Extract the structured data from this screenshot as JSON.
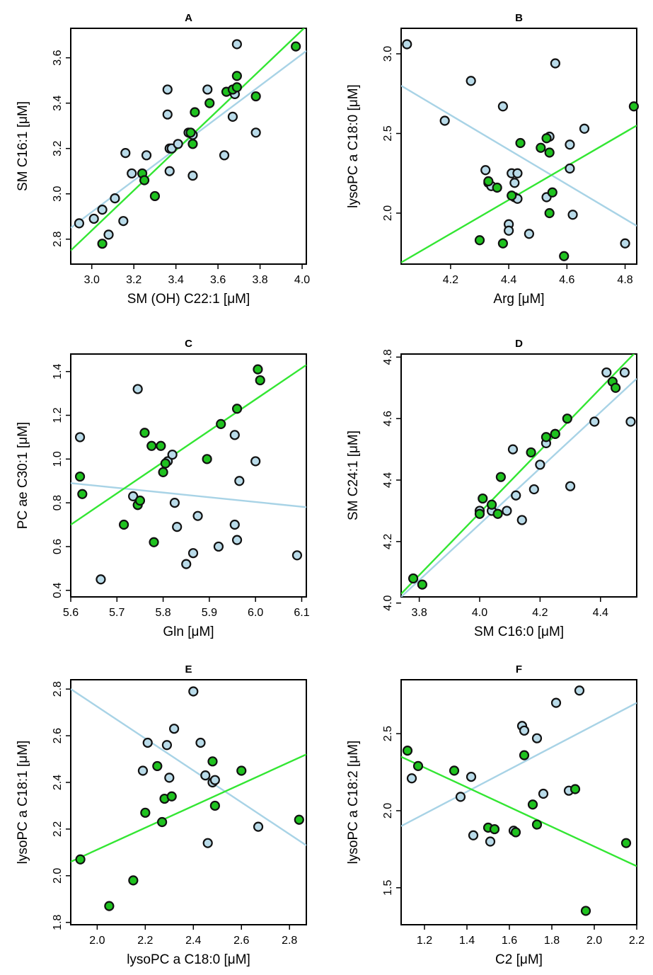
{
  "colors": {
    "blue_series": "#b9dbe9",
    "green_series": "#1fc21f",
    "blue_line": "#a8d3e6",
    "green_line": "#33e633",
    "marker_edge": "#111111"
  },
  "chart_data": [
    {
      "type": "scatter",
      "title": "A",
      "xlabel": "SM (OH) C22:1 [μM]",
      "ylabel": "SM C16:1 [μM]",
      "xlim": [
        2.9,
        4.02
      ],
      "ylim": [
        2.69,
        3.73
      ],
      "xticks": [
        3.0,
        3.2,
        3.4,
        3.6,
        3.8,
        4.0
      ],
      "yticks": [
        2.8,
        3.0,
        3.2,
        3.4,
        3.6
      ],
      "xtick_labels": [
        "3.0",
        "3.2",
        "3.4",
        "3.6",
        "3.8",
        "4.0"
      ],
      "ytick_labels": [
        "2.8",
        "3.0",
        "3.2",
        "3.4",
        "3.6"
      ],
      "series": [
        {
          "color": "blue",
          "x": [
            2.94,
            3.01,
            3.05,
            3.08,
            3.11,
            3.15,
            3.16,
            3.19,
            3.26,
            3.36,
            3.36,
            3.37,
            3.37,
            3.38,
            3.41,
            3.46,
            3.48,
            3.48,
            3.55,
            3.63,
            3.67,
            3.68,
            3.69,
            3.78
          ],
          "y": [
            2.87,
            2.89,
            2.93,
            2.82,
            2.98,
            2.88,
            3.18,
            3.09,
            3.17,
            3.35,
            3.46,
            3.1,
            3.2,
            3.2,
            3.22,
            3.27,
            3.26,
            3.08,
            3.46,
            3.17,
            3.34,
            3.44,
            3.66,
            3.27
          ]
        },
        {
          "color": "green",
          "x": [
            3.05,
            3.24,
            3.25,
            3.3,
            3.47,
            3.48,
            3.49,
            3.56,
            3.64,
            3.67,
            3.69,
            3.69,
            3.78,
            3.97
          ],
          "y": [
            2.78,
            3.09,
            3.06,
            2.99,
            3.27,
            3.22,
            3.36,
            3.4,
            3.45,
            3.46,
            3.47,
            3.52,
            3.43,
            3.65
          ]
        }
      ],
      "fit_lines": [
        {
          "color": "blue",
          "x": [
            2.9,
            4.02
          ],
          "y": [
            2.85,
            3.63
          ]
        },
        {
          "color": "green",
          "x": [
            2.9,
            4.02
          ],
          "y": [
            2.75,
            3.74
          ]
        }
      ]
    },
    {
      "type": "scatter",
      "title": "B",
      "xlabel": "Arg [μM]",
      "ylabel": "lysoPC a C18:0 [μM]",
      "xlim": [
        4.03,
        4.84
      ],
      "ylim": [
        1.68,
        3.16
      ],
      "xticks": [
        4.2,
        4.4,
        4.6,
        4.8
      ],
      "yticks": [
        2.0,
        2.5,
        3.0
      ],
      "xtick_labels": [
        "4.2",
        "4.4",
        "4.6",
        "4.8"
      ],
      "ytick_labels": [
        "2.0",
        "2.5",
        "3.0"
      ],
      "series": [
        {
          "color": "blue",
          "x": [
            4.05,
            4.18,
            4.27,
            4.32,
            4.33,
            4.34,
            4.38,
            4.4,
            4.4,
            4.41,
            4.42,
            4.42,
            4.43,
            4.43,
            4.47,
            4.53,
            4.54,
            4.56,
            4.61,
            4.61,
            4.62,
            4.66,
            4.8
          ],
          "y": [
            3.06,
            2.58,
            2.83,
            2.27,
            2.19,
            2.17,
            2.67,
            1.93,
            1.89,
            2.25,
            2.19,
            2.1,
            2.25,
            2.09,
            1.87,
            2.1,
            2.48,
            2.94,
            2.43,
            2.28,
            1.99,
            2.53,
            1.81
          ]
        },
        {
          "color": "green",
          "x": [
            4.3,
            4.33,
            4.36,
            4.38,
            4.41,
            4.44,
            4.51,
            4.53,
            4.54,
            4.54,
            4.55,
            4.59,
            4.83
          ],
          "y": [
            1.83,
            2.2,
            2.16,
            1.81,
            2.11,
            2.44,
            2.41,
            2.47,
            2.38,
            2.0,
            2.13,
            1.73,
            2.67
          ]
        }
      ],
      "fit_lines": [
        {
          "color": "blue",
          "x": [
            4.03,
            4.84
          ],
          "y": [
            2.8,
            1.92
          ]
        },
        {
          "color": "green",
          "x": [
            4.03,
            4.84
          ],
          "y": [
            1.69,
            2.55
          ]
        }
      ]
    },
    {
      "type": "scatter",
      "title": "C",
      "xlabel": "Gln [μM]",
      "ylabel": "PC ae C30:1 [μM]",
      "xlim": [
        5.6,
        6.11
      ],
      "ylim": [
        0.37,
        1.48
      ],
      "xticks": [
        5.6,
        5.7,
        5.8,
        5.9,
        6.0,
        6.1
      ],
      "yticks": [
        0.4,
        0.6,
        0.8,
        1.0,
        1.2,
        1.4
      ],
      "xtick_labels": [
        "5.6",
        "5.7",
        "5.8",
        "5.9",
        "6.0",
        "6.1"
      ],
      "ytick_labels": [
        "0.4",
        "0.6",
        "0.8",
        "1.0",
        "1.2",
        "1.4"
      ],
      "series": [
        {
          "color": "blue",
          "x": [
            5.62,
            5.665,
            5.735,
            5.745,
            5.81,
            5.82,
            5.825,
            5.83,
            5.85,
            5.865,
            5.875,
            5.92,
            5.955,
            5.955,
            5.96,
            5.965,
            6.0,
            6.09
          ],
          "y": [
            1.1,
            0.45,
            0.83,
            1.32,
            0.99,
            1.02,
            0.8,
            0.69,
            0.52,
            0.57,
            0.74,
            0.6,
            1.11,
            0.7,
            0.63,
            0.9,
            0.99,
            0.56
          ]
        },
        {
          "color": "green",
          "x": [
            5.62,
            5.625,
            5.715,
            5.745,
            5.75,
            5.76,
            5.775,
            5.78,
            5.795,
            5.8,
            5.805,
            5.895,
            5.925,
            5.96,
            6.005,
            6.01
          ],
          "y": [
            0.92,
            0.84,
            0.7,
            0.79,
            0.81,
            1.12,
            1.06,
            0.62,
            1.06,
            0.94,
            0.98,
            1.0,
            1.16,
            1.23,
            1.41,
            1.36
          ]
        }
      ],
      "fit_lines": [
        {
          "color": "blue",
          "x": [
            5.6,
            6.11
          ],
          "y": [
            0.89,
            0.78
          ]
        },
        {
          "color": "green",
          "x": [
            5.6,
            6.11
          ],
          "y": [
            0.7,
            1.43
          ]
        }
      ]
    },
    {
      "type": "scatter",
      "title": "D",
      "xlabel": "SM C16:0 [μM]",
      "ylabel": "SM C24:1 [μM]",
      "xlim": [
        3.74,
        4.52
      ],
      "ylim": [
        4.02,
        4.81
      ],
      "xticks": [
        3.8,
        4.0,
        4.2,
        4.4
      ],
      "yticks": [
        4.0,
        4.2,
        4.4,
        4.6,
        4.8
      ],
      "xtick_labels": [
        "3.8",
        "4.0",
        "4.2",
        "4.4"
      ],
      "ytick_labels": [
        "4.0",
        "4.2",
        "4.4",
        "4.6",
        "4.8"
      ],
      "series": [
        {
          "color": "blue",
          "x": [
            4.0,
            4.04,
            4.09,
            4.11,
            4.12,
            4.14,
            4.18,
            4.2,
            4.22,
            4.25,
            4.3,
            4.38,
            4.42,
            4.48,
            4.5
          ],
          "y": [
            4.3,
            4.3,
            4.3,
            4.5,
            4.35,
            4.27,
            4.37,
            4.45,
            4.52,
            4.55,
            4.38,
            4.59,
            4.75,
            4.75,
            4.59
          ]
        },
        {
          "color": "green",
          "x": [
            3.78,
            3.81,
            4.0,
            4.01,
            4.04,
            4.06,
            4.07,
            4.17,
            4.22,
            4.25,
            4.29,
            4.44,
            4.45
          ],
          "y": [
            4.08,
            4.06,
            4.29,
            4.34,
            4.32,
            4.29,
            4.41,
            4.49,
            4.54,
            4.55,
            4.6,
            4.72,
            4.7
          ]
        }
      ],
      "fit_lines": [
        {
          "color": "blue",
          "x": [
            3.74,
            4.52
          ],
          "y": [
            4.02,
            4.73
          ]
        },
        {
          "color": "green",
          "x": [
            3.74,
            4.52
          ],
          "y": [
            4.03,
            4.82
          ]
        }
      ]
    },
    {
      "type": "scatter",
      "title": "E",
      "xlabel": "lysoPC a C18:0 [μM]",
      "ylabel": "lysoPC a C18:1 [μM]",
      "xlim": [
        1.89,
        2.87
      ],
      "ylim": [
        1.79,
        2.84
      ],
      "xticks": [
        2.0,
        2.2,
        2.4,
        2.6,
        2.8
      ],
      "yticks": [
        1.8,
        2.0,
        2.2,
        2.4,
        2.6,
        2.8
      ],
      "xtick_labels": [
        "2.0",
        "2.2",
        "2.4",
        "2.6",
        "2.8"
      ],
      "ytick_labels": [
        "1.8",
        "2.0",
        "2.2",
        "2.4",
        "2.6",
        "2.8"
      ],
      "series": [
        {
          "color": "blue",
          "x": [
            2.19,
            2.21,
            2.29,
            2.3,
            2.32,
            2.4,
            2.43,
            2.45,
            2.46,
            2.48,
            2.49,
            2.67
          ],
          "y": [
            2.45,
            2.57,
            2.56,
            2.42,
            2.63,
            2.79,
            2.57,
            2.43,
            2.14,
            2.4,
            2.41,
            2.21
          ]
        },
        {
          "color": "green",
          "x": [
            1.93,
            2.05,
            2.15,
            2.2,
            2.25,
            2.27,
            2.28,
            2.31,
            2.48,
            2.49,
            2.6,
            2.84
          ],
          "y": [
            2.07,
            1.87,
            1.98,
            2.27,
            2.47,
            2.23,
            2.33,
            2.34,
            2.49,
            2.3,
            2.45,
            2.24
          ]
        }
      ],
      "fit_lines": [
        {
          "color": "blue",
          "x": [
            1.89,
            2.87
          ],
          "y": [
            2.8,
            2.13
          ]
        },
        {
          "color": "green",
          "x": [
            1.89,
            2.87
          ],
          "y": [
            2.06,
            2.52
          ]
        }
      ]
    },
    {
      "type": "scatter",
      "title": "F",
      "xlabel": "C2 [μM]",
      "ylabel": "lysoPC a C18:2 [μM]",
      "xlim": [
        1.09,
        2.2
      ],
      "ylim": [
        1.26,
        2.85
      ],
      "xticks": [
        1.2,
        1.4,
        1.6,
        1.8,
        2.0,
        2.2
      ],
      "yticks": [
        1.5,
        2.0,
        2.5
      ],
      "xtick_labels": [
        "1.2",
        "1.4",
        "1.6",
        "1.8",
        "2.0",
        "2.2"
      ],
      "ytick_labels": [
        "1.5",
        "2.0",
        "2.5"
      ],
      "series": [
        {
          "color": "blue",
          "x": [
            1.14,
            1.37,
            1.42,
            1.43,
            1.51,
            1.62,
            1.66,
            1.67,
            1.73,
            1.76,
            1.82,
            1.88,
            1.93
          ],
          "y": [
            2.21,
            2.09,
            2.22,
            1.84,
            1.8,
            1.87,
            2.55,
            2.52,
            2.47,
            2.11,
            2.7,
            2.13,
            2.78
          ]
        },
        {
          "color": "green",
          "x": [
            1.12,
            1.17,
            1.34,
            1.5,
            1.53,
            1.63,
            1.67,
            1.71,
            1.73,
            1.91,
            1.96,
            2.15
          ],
          "y": [
            2.39,
            2.29,
            2.26,
            1.89,
            1.88,
            1.86,
            2.36,
            2.04,
            1.91,
            2.14,
            1.35,
            1.79
          ]
        }
      ],
      "fit_lines": [
        {
          "color": "blue",
          "x": [
            1.09,
            2.2
          ],
          "y": [
            1.9,
            2.7
          ]
        },
        {
          "color": "green",
          "x": [
            1.09,
            2.2
          ],
          "y": [
            2.35,
            1.64
          ]
        }
      ]
    }
  ]
}
